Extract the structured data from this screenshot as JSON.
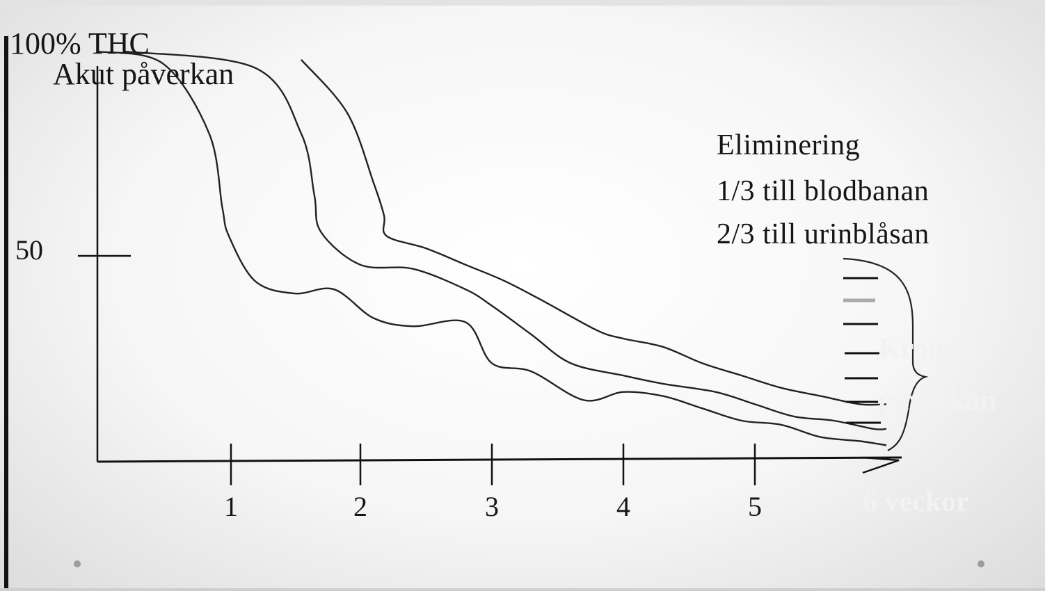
{
  "chart_data": {
    "type": "line",
    "title": "100% THC",
    "subtitle": "Akut påverkan",
    "ytick_labels": [
      "50"
    ],
    "xtick_labels": [
      "1",
      "2",
      "3",
      "4",
      "5"
    ],
    "xlim": [
      0,
      6.2
    ],
    "ylim": [
      0,
      100
    ],
    "grid": false,
    "series": [
      {
        "x": [
          0.0,
          0.5,
          0.85,
          0.95,
          1.0,
          1.2,
          1.5,
          1.8,
          2.1,
          2.4,
          2.8,
          3.0,
          3.3,
          3.7,
          4.0,
          4.3,
          4.6,
          4.9,
          5.2,
          5.5,
          5.8,
          6.0
        ],
        "y": [
          100,
          97,
          80,
          62,
          55,
          44,
          41,
          42,
          35,
          33,
          34,
          24,
          22,
          15,
          17,
          16,
          13,
          10,
          9,
          6,
          5,
          4
        ]
      },
      {
        "x": [
          0.2,
          1.2,
          1.55,
          1.65,
          1.7,
          2.0,
          2.4,
          2.8,
          3.0,
          3.3,
          3.6,
          4.0,
          4.3,
          4.7,
          5.0,
          5.3,
          5.6,
          5.9,
          6.0
        ],
        "y": [
          100,
          96,
          80,
          65,
          56,
          48,
          47,
          42,
          38,
          31,
          24,
          21,
          19,
          17,
          14,
          11,
          10,
          8,
          8
        ]
      },
      {
        "x": [
          1.55,
          1.9,
          2.1,
          2.18,
          2.2,
          2.5,
          2.8,
          3.1,
          3.4,
          3.8,
          4.0,
          4.3,
          4.6,
          4.9,
          5.2,
          5.5,
          5.8,
          6.0
        ],
        "y": [
          98,
          85,
          68,
          60,
          55,
          52,
          48,
          44,
          39,
          32,
          30,
          28,
          24,
          21,
          18,
          16,
          14,
          14
        ]
      }
    ],
    "annotations": [
      "Eliminering",
      "1/3 till blodbanan",
      "2/3 till urinblåsan",
      "Kronisk",
      "påverkan",
      "6 veckor"
    ]
  }
}
